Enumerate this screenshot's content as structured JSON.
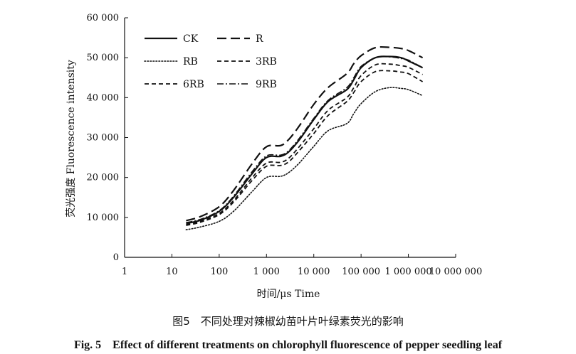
{
  "caption_cn": "图5　不同处理对辣椒幼苗叶片叶绿素荧光的影响",
  "caption_en": "Fig. 5　Effect of different treatments on chlorophyll fluorescence of pepper seedling leaf",
  "chart_data": {
    "type": "line",
    "title": "",
    "xlabel": "时间/μs Time",
    "ylabel": "荧光强度 Fluorescence intensity",
    "xscale": "log",
    "xlim": [
      1,
      10000000
    ],
    "ylim": [
      0,
      60000
    ],
    "x_tick_labels": [
      "1",
      "10",
      "100",
      "1 000",
      "10  000",
      "100 000",
      "1 000 000",
      "10 000 000"
    ],
    "y_tick_labels": [
      "0",
      "10 000",
      "20 000",
      "30 000",
      "40 000",
      "50 000",
      "60 000"
    ],
    "legend_placement": "top-left",
    "grid": false,
    "x": [
      20,
      40,
      100,
      200,
      500,
      1000,
      2000,
      3000,
      5000,
      10000,
      20000,
      50000,
      70000,
      100000,
      200000,
      400000,
      700000,
      1000000,
      2000000
    ],
    "series": [
      {
        "name": "CK",
        "dash": "solid",
        "values": [
          8500,
          9300,
          11500,
          15000,
          21000,
          25000,
          25300,
          26500,
          29500,
          34500,
          39000,
          42000,
          44500,
          47500,
          50000,
          50300,
          50000,
          49200,
          47500
        ]
      },
      {
        "name": "R",
        "dash": "longdash",
        "values": [
          9200,
          10200,
          12700,
          16700,
          23500,
          27700,
          28000,
          29600,
          33000,
          38300,
          42500,
          46000,
          48500,
          50500,
          52500,
          52600,
          52300,
          51800,
          50000
        ]
      },
      {
        "name": "RB",
        "dash": "dotted",
        "values": [
          6900,
          7600,
          9000,
          11500,
          16500,
          20000,
          20300,
          21300,
          23700,
          27800,
          31700,
          33500,
          36000,
          38500,
          41500,
          42500,
          42300,
          42000,
          40500
        ]
      },
      {
        "name": "3RB",
        "dash": "dashed",
        "values": [
          8000,
          8800,
          10700,
          13800,
          19300,
          22800,
          23000,
          24000,
          26800,
          31000,
          35500,
          39000,
          41300,
          44000,
          46500,
          46700,
          46400,
          46000,
          44000
        ]
      },
      {
        "name": "6RB",
        "dash": "dashed",
        "values": [
          8200,
          9000,
          11000,
          14200,
          20000,
          23600,
          23800,
          24900,
          27800,
          32200,
          36800,
          40000,
          42500,
          45500,
          48200,
          48400,
          48000,
          47600,
          45800
        ]
      },
      {
        "name": "9RB",
        "dash": "dashdot",
        "values": [
          8700,
          9500,
          11700,
          15300,
          21500,
          25400,
          25600,
          26800,
          29900,
          34800,
          39300,
          42500,
          45000,
          47800,
          50000,
          50200,
          49800,
          49400,
          47500
        ]
      }
    ]
  }
}
